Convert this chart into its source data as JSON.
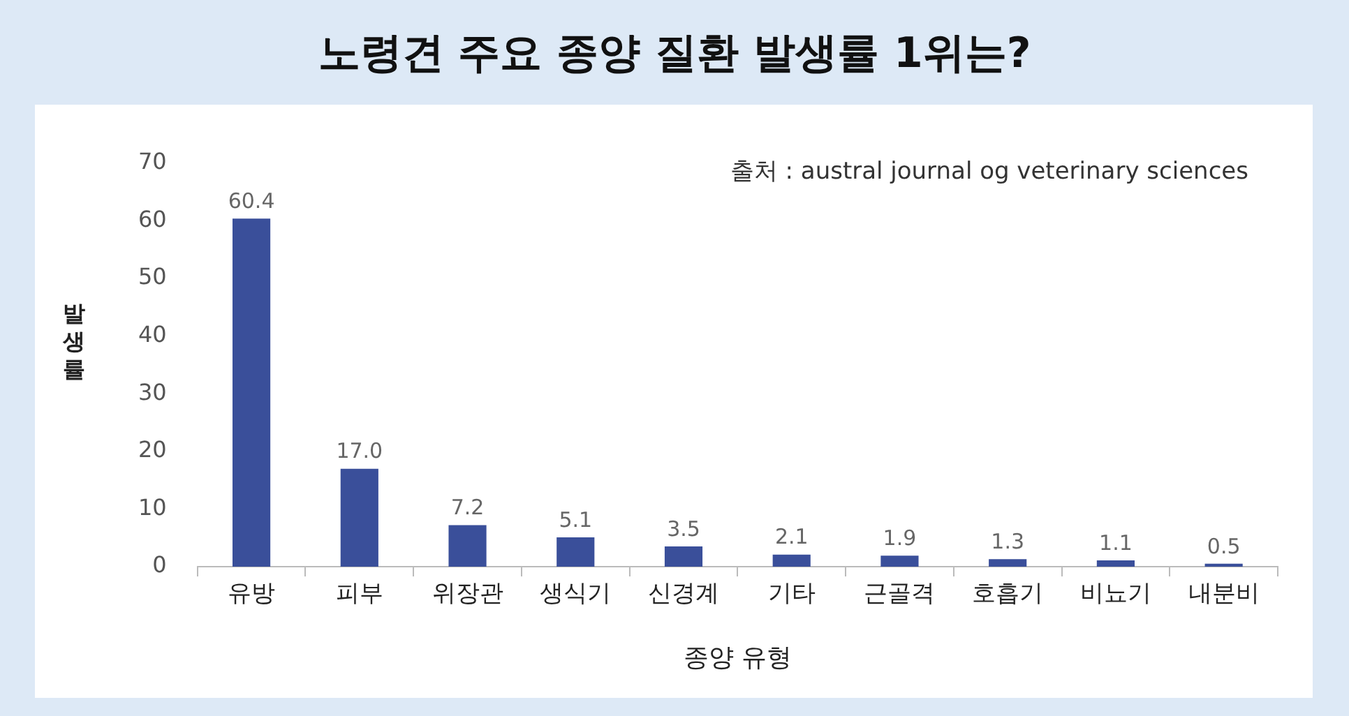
{
  "chart_data": {
    "type": "bar",
    "title": "노령견 주요 종양 질환 발생률 1위는?",
    "xlabel": "종양 유형",
    "ylabel": "발생률",
    "annotations": [
      "출처 : austral journal og veterinary sciences"
    ],
    "categories": [
      "유방",
      "피부",
      "위장관",
      "생식기",
      "신경계",
      "기타",
      "근골격",
      "호흡기",
      "비뇨기",
      "내분비"
    ],
    "values": [
      60.4,
      17.0,
      7.2,
      5.1,
      3.5,
      2.1,
      1.9,
      1.3,
      1.1,
      0.5
    ],
    "value_labels": [
      "60.4",
      "17.0",
      "7.2",
      "5.1",
      "3.5",
      "2.1",
      "1.9",
      "1.3",
      "1.1",
      "0.5"
    ],
    "color": "#3a4f9a",
    "ylim": [
      0,
      70
    ],
    "yticks": [
      0,
      10,
      20,
      30,
      40,
      50,
      60,
      70
    ]
  }
}
